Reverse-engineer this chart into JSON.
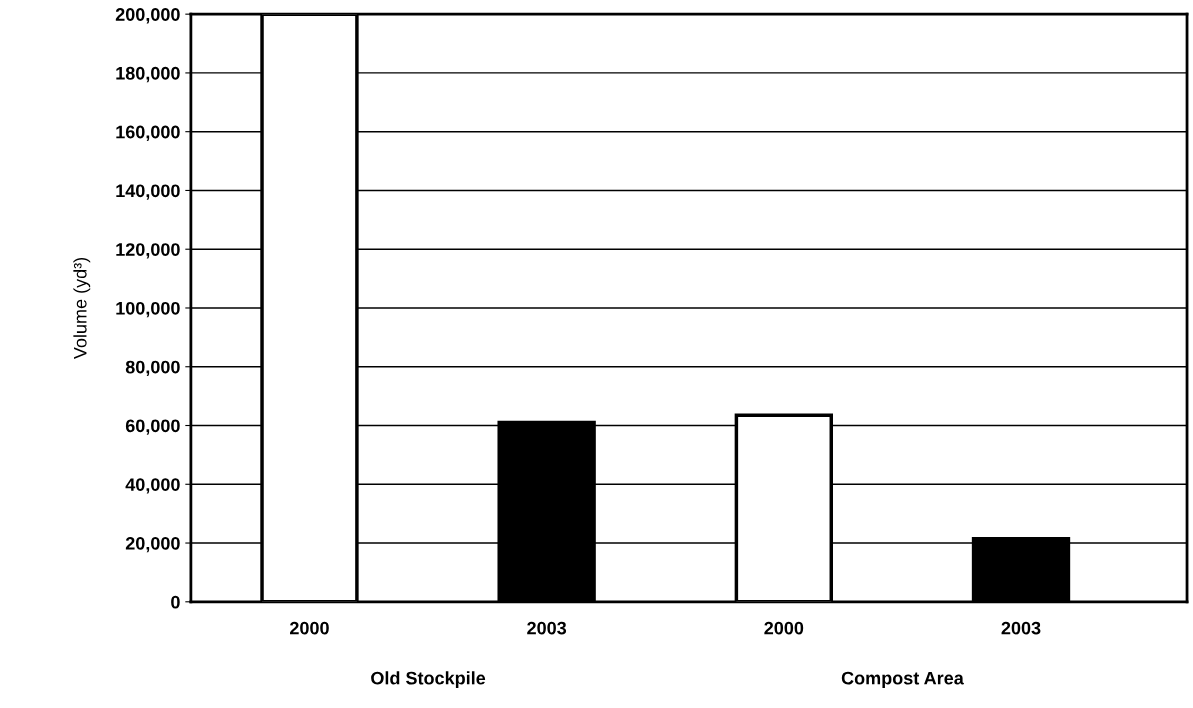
{
  "chart_data": {
    "type": "bar",
    "ylabel": "Volume (yd³)",
    "categories": [
      "2000",
      "2003",
      "2000",
      "2003"
    ],
    "values": [
      200000,
      61000,
      63500,
      21500
    ],
    "colors": [
      "#ffffff",
      "#000000",
      "#ffffff",
      "#000000"
    ],
    "ylim": [
      0,
      200000
    ],
    "yticks": [
      {
        "value": 0,
        "label": "0"
      },
      {
        "value": 20000,
        "label": "20,000"
      },
      {
        "value": 40000,
        "label": "40,000"
      },
      {
        "value": 60000,
        "label": "60,000"
      },
      {
        "value": 80000,
        "label": "80,000"
      },
      {
        "value": 100000,
        "label": "100,000"
      },
      {
        "value": 120000,
        "label": "120,000"
      },
      {
        "value": 140000,
        "label": "140,000"
      },
      {
        "value": 160000,
        "label": "160,000"
      },
      {
        "value": 180000,
        "label": "180,000"
      },
      {
        "value": 200000,
        "label": "200,000"
      }
    ],
    "grid": "y",
    "annotations": [
      "Old Stockpile",
      "Compost Area"
    ]
  }
}
